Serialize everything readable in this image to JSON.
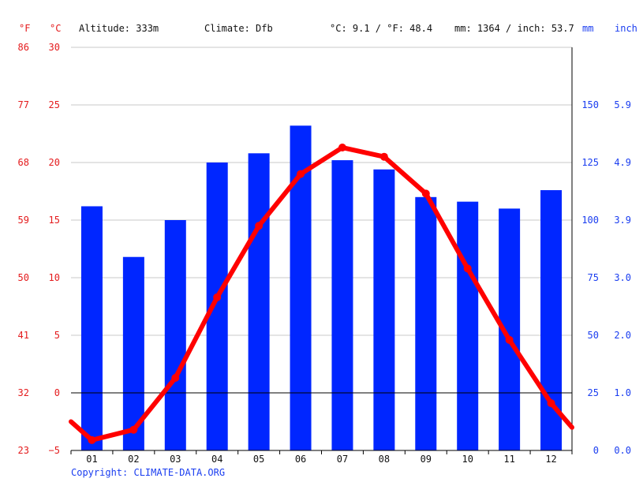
{
  "header": {
    "f_unit": "°F",
    "c_unit": "°C",
    "altitude": "Altitude: 333m",
    "climate": "Climate: Dfb",
    "temp_avg": "°C: 9.1 / °F: 48.4",
    "precip_total": "mm: 1364 / inch: 53.7",
    "mm_unit": "mm",
    "inch_unit": "inch"
  },
  "copyright": "Copyright: CLIMATE-DATA.ORG",
  "colors": {
    "temperature": "#ff0000",
    "precipitation": "#0026ff",
    "temp_axis": "#e41a1c",
    "precip_axis": "#1a3df0"
  },
  "chart_data": {
    "type": "bar",
    "categories": [
      "01",
      "02",
      "03",
      "04",
      "05",
      "06",
      "07",
      "08",
      "09",
      "10",
      "11",
      "12"
    ],
    "series": [
      {
        "type": "bar",
        "axis": "precipitation_mm",
        "values": [
          106,
          84,
          100,
          125,
          129,
          141,
          126,
          122,
          110,
          108,
          105,
          113
        ]
      },
      {
        "type": "line",
        "axis": "temperature_c",
        "values": [
          -4.1,
          -3.2,
          1.3,
          8.3,
          14.5,
          19.0,
          21.3,
          20.5,
          17.3,
          10.8,
          4.6,
          -0.9
        ]
      }
    ],
    "temp_start": -2.5,
    "temp_end": -3.0,
    "temp_c_ticks": [
      "30",
      "25",
      "20",
      "15",
      "10",
      "5",
      "0",
      "−5"
    ],
    "temp_f_ticks": [
      "86",
      "77",
      "68",
      "59",
      "50",
      "41",
      "32",
      "23"
    ],
    "temp_ylim": [
      -5,
      30
    ],
    "precip_mm_ticks": [
      "150",
      "125",
      "100",
      "75",
      "50",
      "25",
      "0"
    ],
    "precip_inch_ticks": [
      "5.9",
      "4.9",
      "3.9",
      "3.0",
      "2.0",
      "1.0",
      "0.0"
    ],
    "precip_ylim": [
      0,
      175
    ],
    "grid": true
  }
}
